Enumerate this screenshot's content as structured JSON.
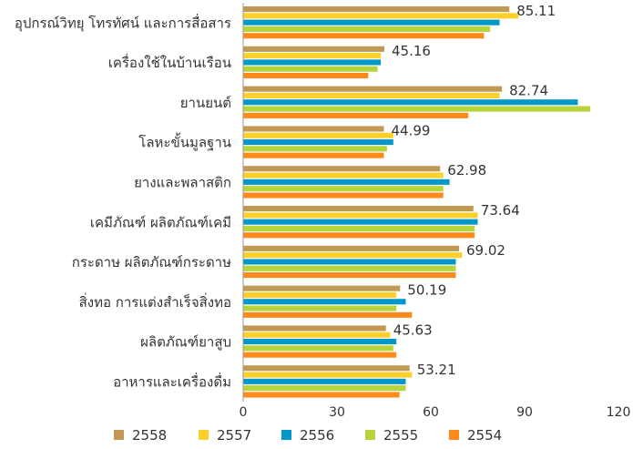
{
  "chart_data": {
    "type": "bar",
    "orientation": "horizontal",
    "categories": [
      "อุปกรณ์วิทยุ โทรทัศน์ และการสื่อสาร",
      "เครื่องใช้ในบ้านเรือน",
      "ยานยนต์",
      "โลหะขั้นมูลฐาน",
      "ยางและพลาสติก",
      "เคมีภัณฑ์ ผลิตภัณฑ์เคมี",
      "กระดาษ ผลิตภัณฑ์กระดาษ",
      "สิ่งทอ การแต่งสำเร็จสิ่งทอ",
      "ผลิตภัณฑ์ยาสูบ",
      "อาหารและเครื่องดื่ม"
    ],
    "series": [
      {
        "name": "2558",
        "color": "#C09A55",
        "values": [
          85.11,
          45.16,
          82.74,
          44.99,
          62.98,
          73.64,
          69.02,
          50.19,
          45.63,
          53.21
        ]
      },
      {
        "name": "2557",
        "color": "#FFD02A",
        "values": [
          88,
          44,
          82,
          48,
          64,
          75,
          70,
          49,
          47,
          54
        ]
      },
      {
        "name": "2556",
        "color": "#0098C9",
        "values": [
          82,
          44,
          107,
          48,
          66,
          75,
          68,
          52,
          49,
          52
        ]
      },
      {
        "name": "2555",
        "color": "#B7D53B",
        "values": [
          79,
          43,
          111,
          46,
          64,
          74,
          68,
          49,
          48,
          52
        ]
      },
      {
        "name": "2554",
        "color": "#FF8A1C",
        "values": [
          77,
          40,
          72,
          45,
          64,
          74,
          68,
          54,
          49,
          50
        ]
      }
    ],
    "data_labels": [
      "85.11",
      "45.16",
      "82.74",
      "44.99",
      "62.98",
      "73.64",
      "69.02",
      "50.19",
      "45.63",
      "53.21"
    ],
    "x_ticks": [
      "0",
      "30",
      "60",
      "90",
      "120"
    ],
    "xlim": [
      0,
      120
    ],
    "grid": false,
    "legend_position": "bottom",
    "title": "",
    "xlabel": "",
    "ylabel": ""
  }
}
